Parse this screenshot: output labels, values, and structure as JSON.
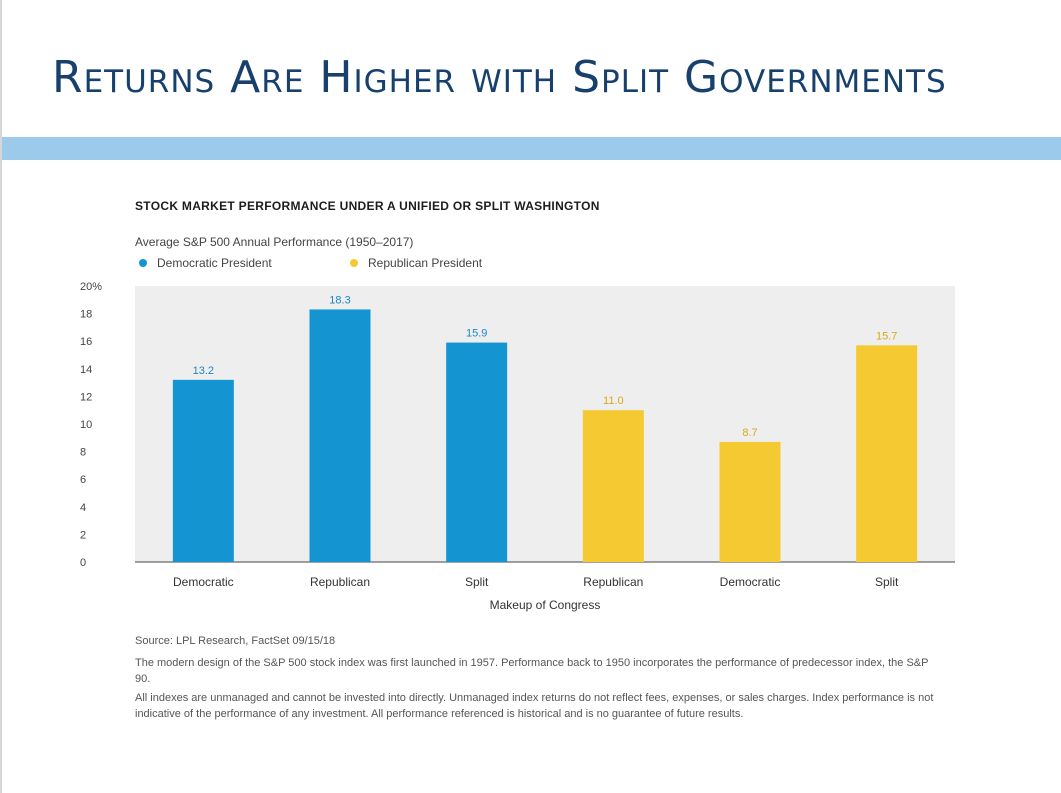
{
  "slide": {
    "title": "Returns Are Higher with Split Governments"
  },
  "colors": {
    "title": "#17406d",
    "band": "#9ccaea",
    "democratic": "#1495d2",
    "republican": "#f5c931",
    "plot_bg": "#eeeeee"
  },
  "chart_data": {
    "type": "bar",
    "title": "STOCK MARKET PERFORMANCE UNDER A UNIFIED OR SPLIT WASHINGTON",
    "subtitle": "Average S&P 500 Annual Performance (1950–2017)",
    "xlabel": "Makeup of Congress",
    "ylabel": "",
    "ylim": [
      0,
      20
    ],
    "yticks": [
      0,
      2,
      4,
      6,
      8,
      10,
      12,
      14,
      16,
      18,
      20
    ],
    "ytick_labels": [
      "0",
      "2",
      "4",
      "6",
      "8",
      "10",
      "12",
      "14",
      "16",
      "18",
      "20%"
    ],
    "grid": false,
    "legend_position": "top-left",
    "legend": [
      {
        "name": "Democratic President",
        "color": "#1495d2"
      },
      {
        "name": "Republican President",
        "color": "#f5c931"
      }
    ],
    "categories": [
      "Democratic",
      "Republican",
      "Split",
      "Republican",
      "Democratic",
      "Split"
    ],
    "values": [
      13.2,
      18.3,
      15.9,
      11.0,
      8.7,
      15.7
    ],
    "value_labels": [
      "13.2",
      "18.3",
      "15.9",
      "11.0",
      "8.7",
      "15.7"
    ],
    "bar_president": [
      "Democratic President",
      "Democratic President",
      "Democratic President",
      "Republican President",
      "Republican President",
      "Republican President"
    ]
  },
  "notes": {
    "source": "Source: LPL Research, FactSet  09/15/18",
    "paragraph1": "The modern design of the S&P 500 stock index was first launched in 1957. Performance back to 1950 incorporates the performance of predecessor index, the S&P 90.",
    "paragraph2": "All indexes are unmanaged and cannot be invested into directly. Unmanaged index returns do not reflect fees, expenses, or sales charges. Index performance is not indicative of the performance of any investment. All performance referenced is historical and is no guarantee of future results."
  }
}
